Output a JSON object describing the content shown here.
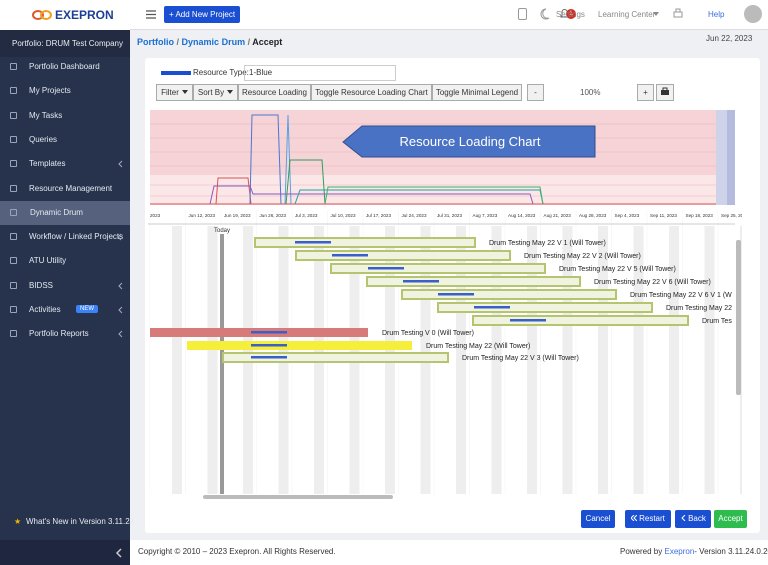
{
  "sidebar": {
    "logo": "EXEPRON",
    "portfolio": "Portfolio: DRUM Test Company",
    "nav": [
      "Portfolio Dashboard",
      "My Projects",
      "My Tasks",
      "Queries",
      "Templates",
      "Resource Management",
      "Dynamic Drum",
      "Workflow / Linked Projects",
      "ATU Utility",
      "BIDSS",
      "Activities",
      "Portfolio Reports"
    ],
    "new_badge": "NEW",
    "whats_new": "What's New in Version 3.11.24"
  },
  "topbar": {
    "add_project": "+ Add New Project",
    "notifications": "1",
    "settings": "Settings",
    "learning_center": "Learning Center",
    "help": "Help"
  },
  "breadcrumb": {
    "items": [
      "Portfolio",
      "Dynamic Drum",
      "Accept"
    ],
    "separator": "/"
  },
  "date": "Jun 22, 2023",
  "toolbar": {
    "resource_type_label": "Resource Type:",
    "resource_type_value": "1-Blue",
    "buttons": [
      "Filter",
      "Sort By",
      "Resource Loading",
      "Toggle Resource Loading Chart",
      "Toggle Minimal Legend"
    ],
    "zoom_out": "-",
    "zoom": "100%",
    "zoom_in": "+"
  },
  "chart_callout": "Resource Loading Chart",
  "timeline": [
    "2023",
    "Jun 12, 2023",
    "Jun 19, 2023",
    "Jun 26, 2023",
    "Jul 3, 2023",
    "Jul 10, 2023",
    "Jul 17, 2023",
    "Jul 24, 2023",
    "Jul 31, 2023",
    "Aug 7, 2023",
    "Aug 14, 2023",
    "Aug 21, 2023",
    "Aug 28, 2023",
    "Sep 4, 2023",
    "Sep 11, 2023",
    "Sep 18, 2023",
    "Sep 25, 2023"
  ],
  "today": "Today",
  "tasks": [
    "Drum Testing May 22 V 1 (Will Tower)",
    "Drum Testing May 22 V 2 (Will Tower)",
    "Drum Testing May 22 V 5 (Will Tower)",
    "Drum Testing May 22 V 6 (Will Tower)",
    "Drum Testing May 22 V 6 V 1 (W",
    "Drum Testing May 22",
    "Drum Tes",
    "Drum Testing V 0 (Will Tower)",
    "Drum Testing May 22 (Will Tower)",
    "Drum Testing May 22 V 3 (Will Tower)"
  ],
  "actions": [
    "Cancel",
    "Restart",
    "Back",
    "Accept"
  ],
  "footer": {
    "copyright": "Copyright © 2010 – 2023 Exepron. All Rights Reserved.",
    "powered_prefix": "Powered by",
    "powered_brand": "Exepron",
    "powered_suffix": "- Version 3.11.24.0.20"
  }
}
